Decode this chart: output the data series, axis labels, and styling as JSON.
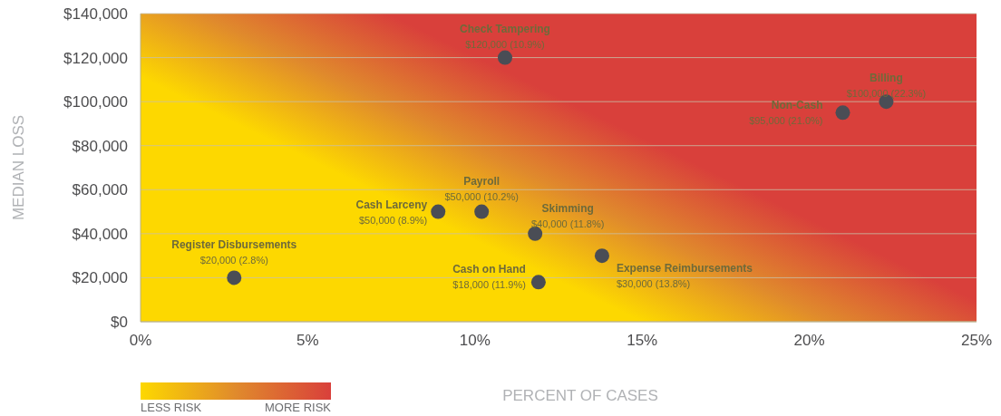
{
  "chart_data": {
    "type": "scatter",
    "xlabel": "PERCENT OF CASES",
    "ylabel": "MEDIAN LOSS",
    "xlim": [
      0,
      25
    ],
    "ylim": [
      0,
      140000
    ],
    "xticks": [
      {
        "value": 0,
        "label": "0%"
      },
      {
        "value": 5,
        "label": "5%"
      },
      {
        "value": 10,
        "label": "10%"
      },
      {
        "value": 15,
        "label": "15%"
      },
      {
        "value": 20,
        "label": "20%"
      },
      {
        "value": 25,
        "label": "25%"
      }
    ],
    "yticks": [
      {
        "value": 0,
        "label": "$0"
      },
      {
        "value": 20000,
        "label": "$20,000"
      },
      {
        "value": 40000,
        "label": "$40,000"
      },
      {
        "value": 60000,
        "label": "$60,000"
      },
      {
        "value": 80000,
        "label": "$80,000"
      },
      {
        "value": 100000,
        "label": "$100,000"
      },
      {
        "value": 120000,
        "label": "$120,000"
      },
      {
        "value": 140000,
        "label": "$140,000"
      }
    ],
    "grid": "y",
    "marker": "circle",
    "series": [
      {
        "color": "#4a4d55",
        "x": [
          10.9,
          22.3,
          21.0,
          10.2,
          8.9,
          11.8,
          13.8,
          2.8,
          11.9
        ],
        "values": [
          120000,
          100000,
          95000,
          50000,
          50000,
          40000,
          30000,
          20000,
          18000
        ],
        "value_labels": [
          "$120,000 (10.9%)",
          "$100,000 (22.3%)",
          "$95,000 (21.0%)",
          "$50,000 (10.2%)",
          "$50,000 (8.9%)",
          "$40,000 (11.8%)",
          "$30,000 (13.8%)",
          "$20,000 (2.8%)",
          "$18,000 (11.9%)"
        ]
      }
    ],
    "annotations": [
      {
        "text": "Check Tampering",
        "x": 10.9,
        "y": 120000
      },
      {
        "text": "Billing",
        "x": 22.3,
        "y": 100000
      },
      {
        "text": "Non-Cash",
        "x": 21.0,
        "y": 95000
      },
      {
        "text": "Payroll",
        "x": 10.2,
        "y": 50000
      },
      {
        "text": "Cash Larceny",
        "x": 8.9,
        "y": 50000
      },
      {
        "text": "Skimming",
        "x": 11.8,
        "y": 40000
      },
      {
        "text": "Expense Reimbursements",
        "x": 13.8,
        "y": 30000
      },
      {
        "text": "Register Disbursements",
        "x": 2.8,
        "y": 20000
      },
      {
        "text": "Cash on Hand",
        "x": 11.9,
        "y": 18000
      },
      "LESS RISK",
      "MORE RISK"
    ]
  }
}
